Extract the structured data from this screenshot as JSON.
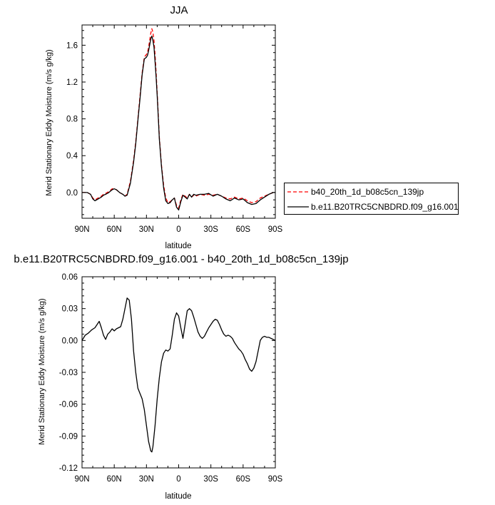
{
  "chart_data": [
    {
      "type": "line",
      "title": "JJA",
      "xlabel": "latitude",
      "ylabel": "Merid Stationary Eddy Moisture (m/s g/kg)",
      "xlim": [
        90,
        -90
      ],
      "ylim": [
        -0.28,
        1.82
      ],
      "x_ticks": [
        "90N",
        "60N",
        "30N",
        "0",
        "30S",
        "60S",
        "90S"
      ],
      "y_ticks": [
        "0.0",
        "0.4",
        "0.8",
        "1.2",
        "1.6"
      ],
      "legend_position": "right",
      "series": [
        {
          "name": "b40_20th_1d_b08c5cn_139jp",
          "color": "#ff0000",
          "dash": "dashed",
          "x": [
            90,
            85,
            82,
            80,
            78,
            75,
            72,
            70,
            68,
            65,
            62,
            60,
            58,
            55,
            52,
            50,
            48,
            45,
            42,
            40,
            38,
            36,
            34,
            32,
            30,
            29,
            28,
            27,
            26,
            25,
            24,
            23,
            22,
            21,
            20,
            19,
            18,
            16,
            14,
            12,
            10,
            8,
            6,
            4,
            2,
            0,
            -2,
            -4,
            -6,
            -8,
            -10,
            -12,
            -14,
            -16,
            -20,
            -24,
            -28,
            -32,
            -36,
            -40,
            -44,
            -48,
            -52,
            -56,
            -60,
            -64,
            -68,
            -72,
            -76,
            -80,
            -84,
            -88,
            -90
          ],
          "y": [
            0.0,
            0.0,
            -0.02,
            -0.06,
            -0.08,
            -0.06,
            -0.04,
            -0.02,
            -0.01,
            0.01,
            0.04,
            0.04,
            0.03,
            0.0,
            -0.02,
            -0.04,
            -0.02,
            0.12,
            0.35,
            0.55,
            0.8,
            1.05,
            1.3,
            1.47,
            1.5,
            1.52,
            1.58,
            1.65,
            1.73,
            1.78,
            1.74,
            1.65,
            1.5,
            1.3,
            1.08,
            0.85,
            0.6,
            0.3,
            0.08,
            -0.06,
            -0.11,
            -0.1,
            -0.08,
            -0.06,
            -0.14,
            -0.17,
            -0.08,
            -0.02,
            -0.04,
            -0.06,
            -0.02,
            -0.05,
            -0.03,
            -0.04,
            -0.02,
            -0.03,
            -0.02,
            -0.03,
            -0.02,
            -0.04,
            -0.06,
            -0.07,
            -0.05,
            -0.07,
            -0.06,
            -0.09,
            -0.11,
            -0.1,
            -0.06,
            -0.04,
            -0.02,
            0.0,
            0.0
          ]
        },
        {
          "name": "b.e11.B20TRC5CNBDRD.f09_g16.001",
          "color": "#000000",
          "dash": "solid",
          "x": [
            90,
            85,
            82,
            80,
            78,
            75,
            72,
            70,
            68,
            65,
            62,
            60,
            58,
            55,
            52,
            50,
            48,
            45,
            42,
            40,
            38,
            36,
            34,
            32,
            30,
            29,
            28,
            27,
            26,
            25,
            24,
            23,
            22,
            21,
            20,
            19,
            18,
            16,
            14,
            12,
            10,
            8,
            6,
            4,
            2,
            0,
            -2,
            -4,
            -6,
            -8,
            -10,
            -12,
            -14,
            -16,
            -20,
            -24,
            -28,
            -32,
            -36,
            -40,
            -44,
            -48,
            -52,
            -56,
            -60,
            -64,
            -68,
            -72,
            -76,
            -80,
            -84,
            -88,
            -90
          ],
          "y": [
            0.0,
            0.0,
            -0.02,
            -0.07,
            -0.09,
            -0.07,
            -0.05,
            -0.03,
            -0.02,
            0.0,
            0.03,
            0.04,
            0.03,
            0.0,
            -0.02,
            -0.04,
            -0.03,
            0.1,
            0.33,
            0.53,
            0.78,
            1.02,
            1.28,
            1.45,
            1.47,
            1.49,
            1.54,
            1.6,
            1.67,
            1.7,
            1.65,
            1.58,
            1.42,
            1.25,
            1.05,
            0.82,
            0.58,
            0.28,
            0.05,
            -0.09,
            -0.12,
            -0.11,
            -0.08,
            -0.06,
            -0.16,
            -0.19,
            -0.1,
            -0.03,
            -0.05,
            -0.07,
            -0.02,
            -0.05,
            -0.02,
            -0.03,
            -0.02,
            -0.02,
            -0.01,
            -0.04,
            -0.02,
            -0.04,
            -0.07,
            -0.09,
            -0.06,
            -0.08,
            -0.07,
            -0.11,
            -0.13,
            -0.12,
            -0.08,
            -0.05,
            -0.02,
            0.0,
            0.0
          ]
        }
      ]
    },
    {
      "type": "line",
      "title": "b.e11.B20TRC5CNBDRD.f09_g16.001 - b40_20th_1d_b08c5cn_139jp",
      "xlabel": "latitude",
      "ylabel": "Merid Stationary Eddy Moisture (m/s g/kg)",
      "xlim": [
        90,
        -90
      ],
      "ylim": [
        -0.12,
        0.06
      ],
      "x_ticks": [
        "90N",
        "60N",
        "30N",
        "0",
        "30S",
        "60S",
        "90S"
      ],
      "y_ticks": [
        "-0.12",
        "-0.09",
        "-0.06",
        "-0.03",
        "0.00",
        "0.03",
        "0.06"
      ],
      "series": [
        {
          "color": "#000000",
          "dash": "solid",
          "x": [
            90,
            87,
            84,
            81,
            78,
            76,
            74,
            72,
            70,
            68,
            66,
            64,
            62,
            60,
            58,
            56,
            54,
            52,
            50,
            48,
            46,
            44,
            42,
            40,
            38,
            36,
            34,
            32,
            30,
            28,
            26,
            25,
            24,
            22,
            20,
            18,
            16,
            14,
            12,
            10,
            8,
            6,
            4,
            2,
            0,
            -2,
            -4,
            -6,
            -8,
            -10,
            -12,
            -14,
            -16,
            -18,
            -20,
            -22,
            -24,
            -26,
            -28,
            -30,
            -32,
            -34,
            -36,
            -38,
            -40,
            -42,
            -44,
            -46,
            -48,
            -50,
            -52,
            -54,
            -56,
            -58,
            -60,
            -62,
            -64,
            -66,
            -68,
            -70,
            -72,
            -74,
            -76,
            -78,
            -80,
            -82,
            -84,
            -86,
            -88,
            -90
          ],
          "y": [
            0.0,
            0.005,
            0.007,
            0.01,
            0.012,
            0.015,
            0.018,
            0.012,
            0.005,
            0.001,
            0.006,
            0.008,
            0.011,
            0.009,
            0.011,
            0.012,
            0.013,
            0.02,
            0.03,
            0.04,
            0.038,
            0.02,
            -0.01,
            -0.03,
            -0.045,
            -0.05,
            -0.055,
            -0.065,
            -0.08,
            -0.095,
            -0.104,
            -0.105,
            -0.1,
            -0.08,
            -0.055,
            -0.035,
            -0.02,
            -0.012,
            -0.009,
            -0.01,
            -0.008,
            0.005,
            0.02,
            0.026,
            0.023,
            0.012,
            0.002,
            0.015,
            0.028,
            0.03,
            0.028,
            0.022,
            0.015,
            0.008,
            0.004,
            0.002,
            0.004,
            0.008,
            0.012,
            0.015,
            0.018,
            0.02,
            0.019,
            0.015,
            0.01,
            0.006,
            0.004,
            0.005,
            0.004,
            0.002,
            -0.002,
            -0.005,
            -0.008,
            -0.01,
            -0.013,
            -0.018,
            -0.022,
            -0.027,
            -0.029,
            -0.026,
            -0.02,
            -0.01,
            0.0,
            0.003,
            0.004,
            0.003,
            0.003,
            0.002,
            0.001,
            0.0
          ]
        }
      ]
    }
  ]
}
